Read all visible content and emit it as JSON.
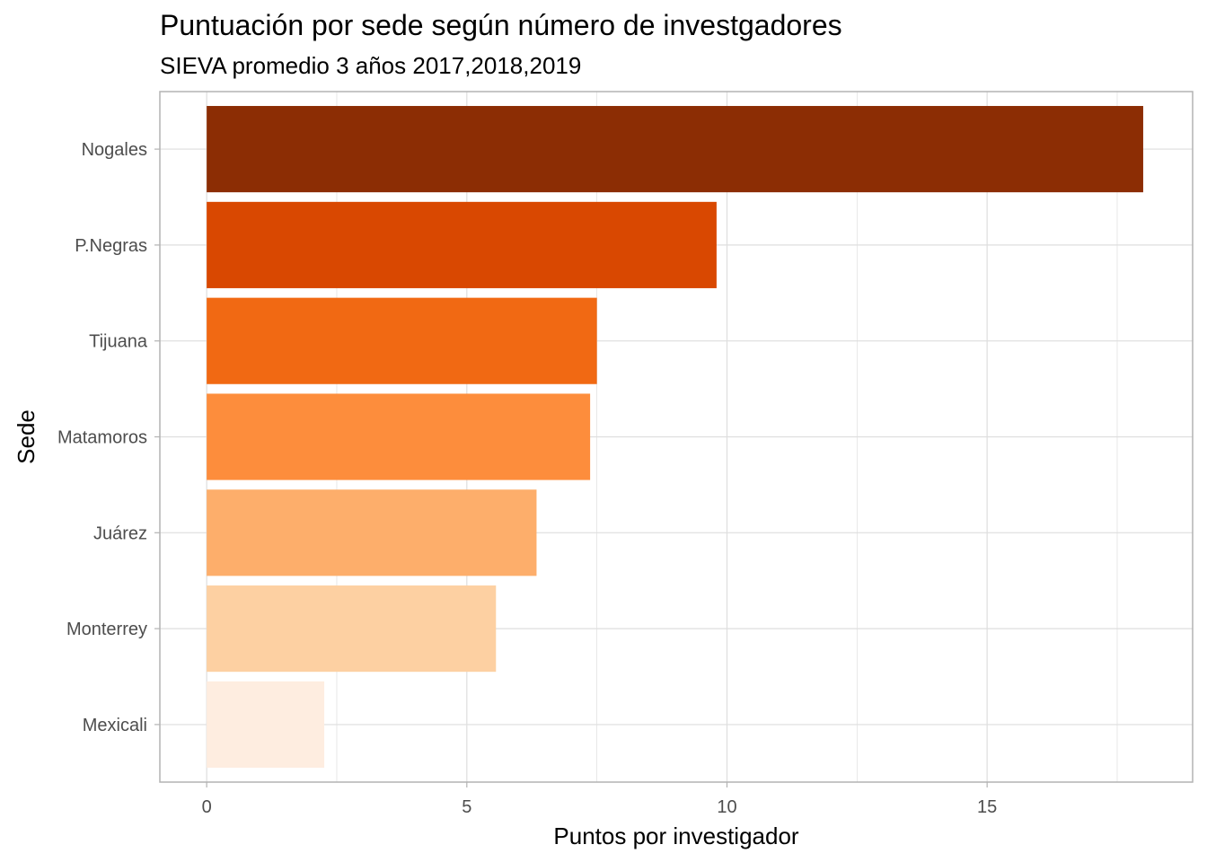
{
  "chart_data": {
    "type": "bar",
    "orientation": "horizontal",
    "title": "Puntuación por sede según número de investgadores",
    "subtitle": "SIEVA promedio 3 años 2017,2018,2019",
    "xlabel": "Puntos por investigador",
    "ylabel": "Sede",
    "categories": [
      "Nogales",
      "P.Negras",
      "Tijuana",
      "Matamoros",
      "Juárez",
      "Monterrey",
      "Mexicali"
    ],
    "values": [
      18.0,
      9.8,
      7.5,
      7.37,
      6.34,
      5.56,
      2.26
    ],
    "colors": [
      "#8c2d04",
      "#d94801",
      "#f16913",
      "#fd8d3c",
      "#fdae6b",
      "#fdd0a2",
      "#feede0"
    ],
    "xlim": [
      -0.9,
      18.95
    ],
    "xticks": [
      0,
      5,
      10,
      15
    ],
    "xtick_labels": [
      "0",
      "5",
      "10",
      "15"
    ],
    "grid": true,
    "legend": "none"
  }
}
